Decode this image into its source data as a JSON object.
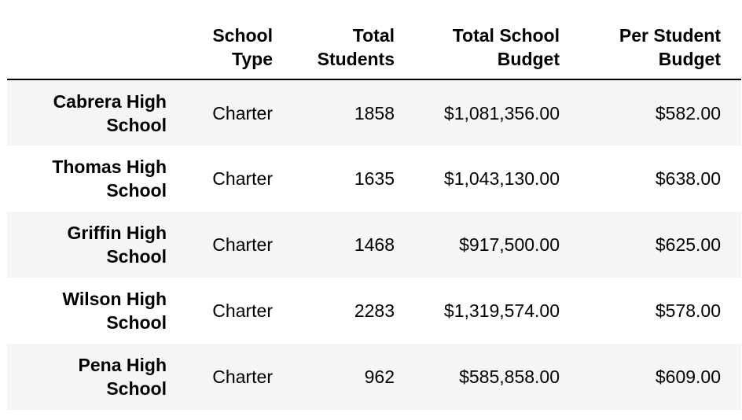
{
  "table": {
    "columns": [
      "",
      "School Type",
      "Total Students",
      "Total School Budget",
      "Per Student Budget"
    ],
    "header_lines": [
      [
        ""
      ],
      [
        "School",
        "Type"
      ],
      [
        "Total",
        "Students"
      ],
      [
        "Total School",
        "Budget"
      ],
      [
        "Per Student",
        "Budget"
      ]
    ],
    "rows": [
      {
        "index_lines": [
          "Cabrera High",
          "School"
        ],
        "school_type": "Charter",
        "total_students": "1858",
        "total_school_budget": "$1,081,356.00",
        "per_student_budget": "$582.00"
      },
      {
        "index_lines": [
          "Thomas High",
          "School"
        ],
        "school_type": "Charter",
        "total_students": "1635",
        "total_school_budget": "$1,043,130.00",
        "per_student_budget": "$638.00"
      },
      {
        "index_lines": [
          "Griffin High",
          "School"
        ],
        "school_type": "Charter",
        "total_students": "1468",
        "total_school_budget": "$917,500.00",
        "per_student_budget": "$625.00"
      },
      {
        "index_lines": [
          "Wilson High",
          "School"
        ],
        "school_type": "Charter",
        "total_students": "2283",
        "total_school_budget": "$1,319,574.00",
        "per_student_budget": "$578.00"
      },
      {
        "index_lines": [
          "Pena High",
          "School"
        ],
        "school_type": "Charter",
        "total_students": "962",
        "total_school_budget": "$585,858.00",
        "per_student_budget": "$609.00"
      }
    ]
  }
}
